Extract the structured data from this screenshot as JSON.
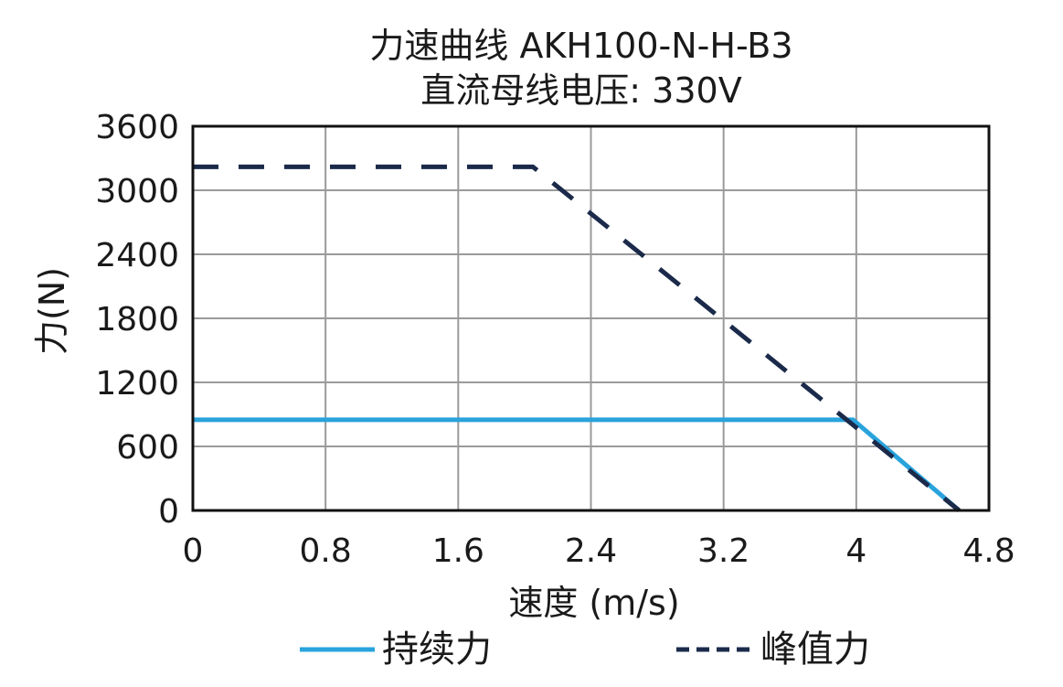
{
  "chart_data": {
    "type": "line",
    "title": "力速曲线 AKH100-N-H-B3",
    "subtitle": "直流母线电压: 330V",
    "xlabel": "速度 (m/s)",
    "ylabel": "力(N)",
    "xlim": [
      0,
      4.8
    ],
    "ylim": [
      0,
      3600
    ],
    "xticks": [
      0,
      0.8,
      1.6,
      2.4,
      3.2,
      4,
      4.8
    ],
    "xtick_labels": [
      "0",
      "0.8",
      "1.6",
      "2.4",
      "3.2",
      "4",
      "4.8"
    ],
    "yticks": [
      0,
      600,
      1200,
      1800,
      2400,
      3000,
      3600
    ],
    "ytick_labels": [
      "0",
      "600",
      "1200",
      "1800",
      "2400",
      "3000",
      "3600"
    ],
    "grid": true,
    "legend_position": "bottom",
    "series": [
      {
        "name": "持续力",
        "style": "solid",
        "color": "#29a3dc",
        "x": [
          0,
          3.98,
          4.62
        ],
        "y": [
          850,
          850,
          0
        ]
      },
      {
        "name": "峰值力",
        "style": "dashed",
        "color": "#1b2a4a",
        "x": [
          0,
          2.05,
          4.62
        ],
        "y": [
          3220,
          3220,
          0
        ]
      }
    ]
  }
}
